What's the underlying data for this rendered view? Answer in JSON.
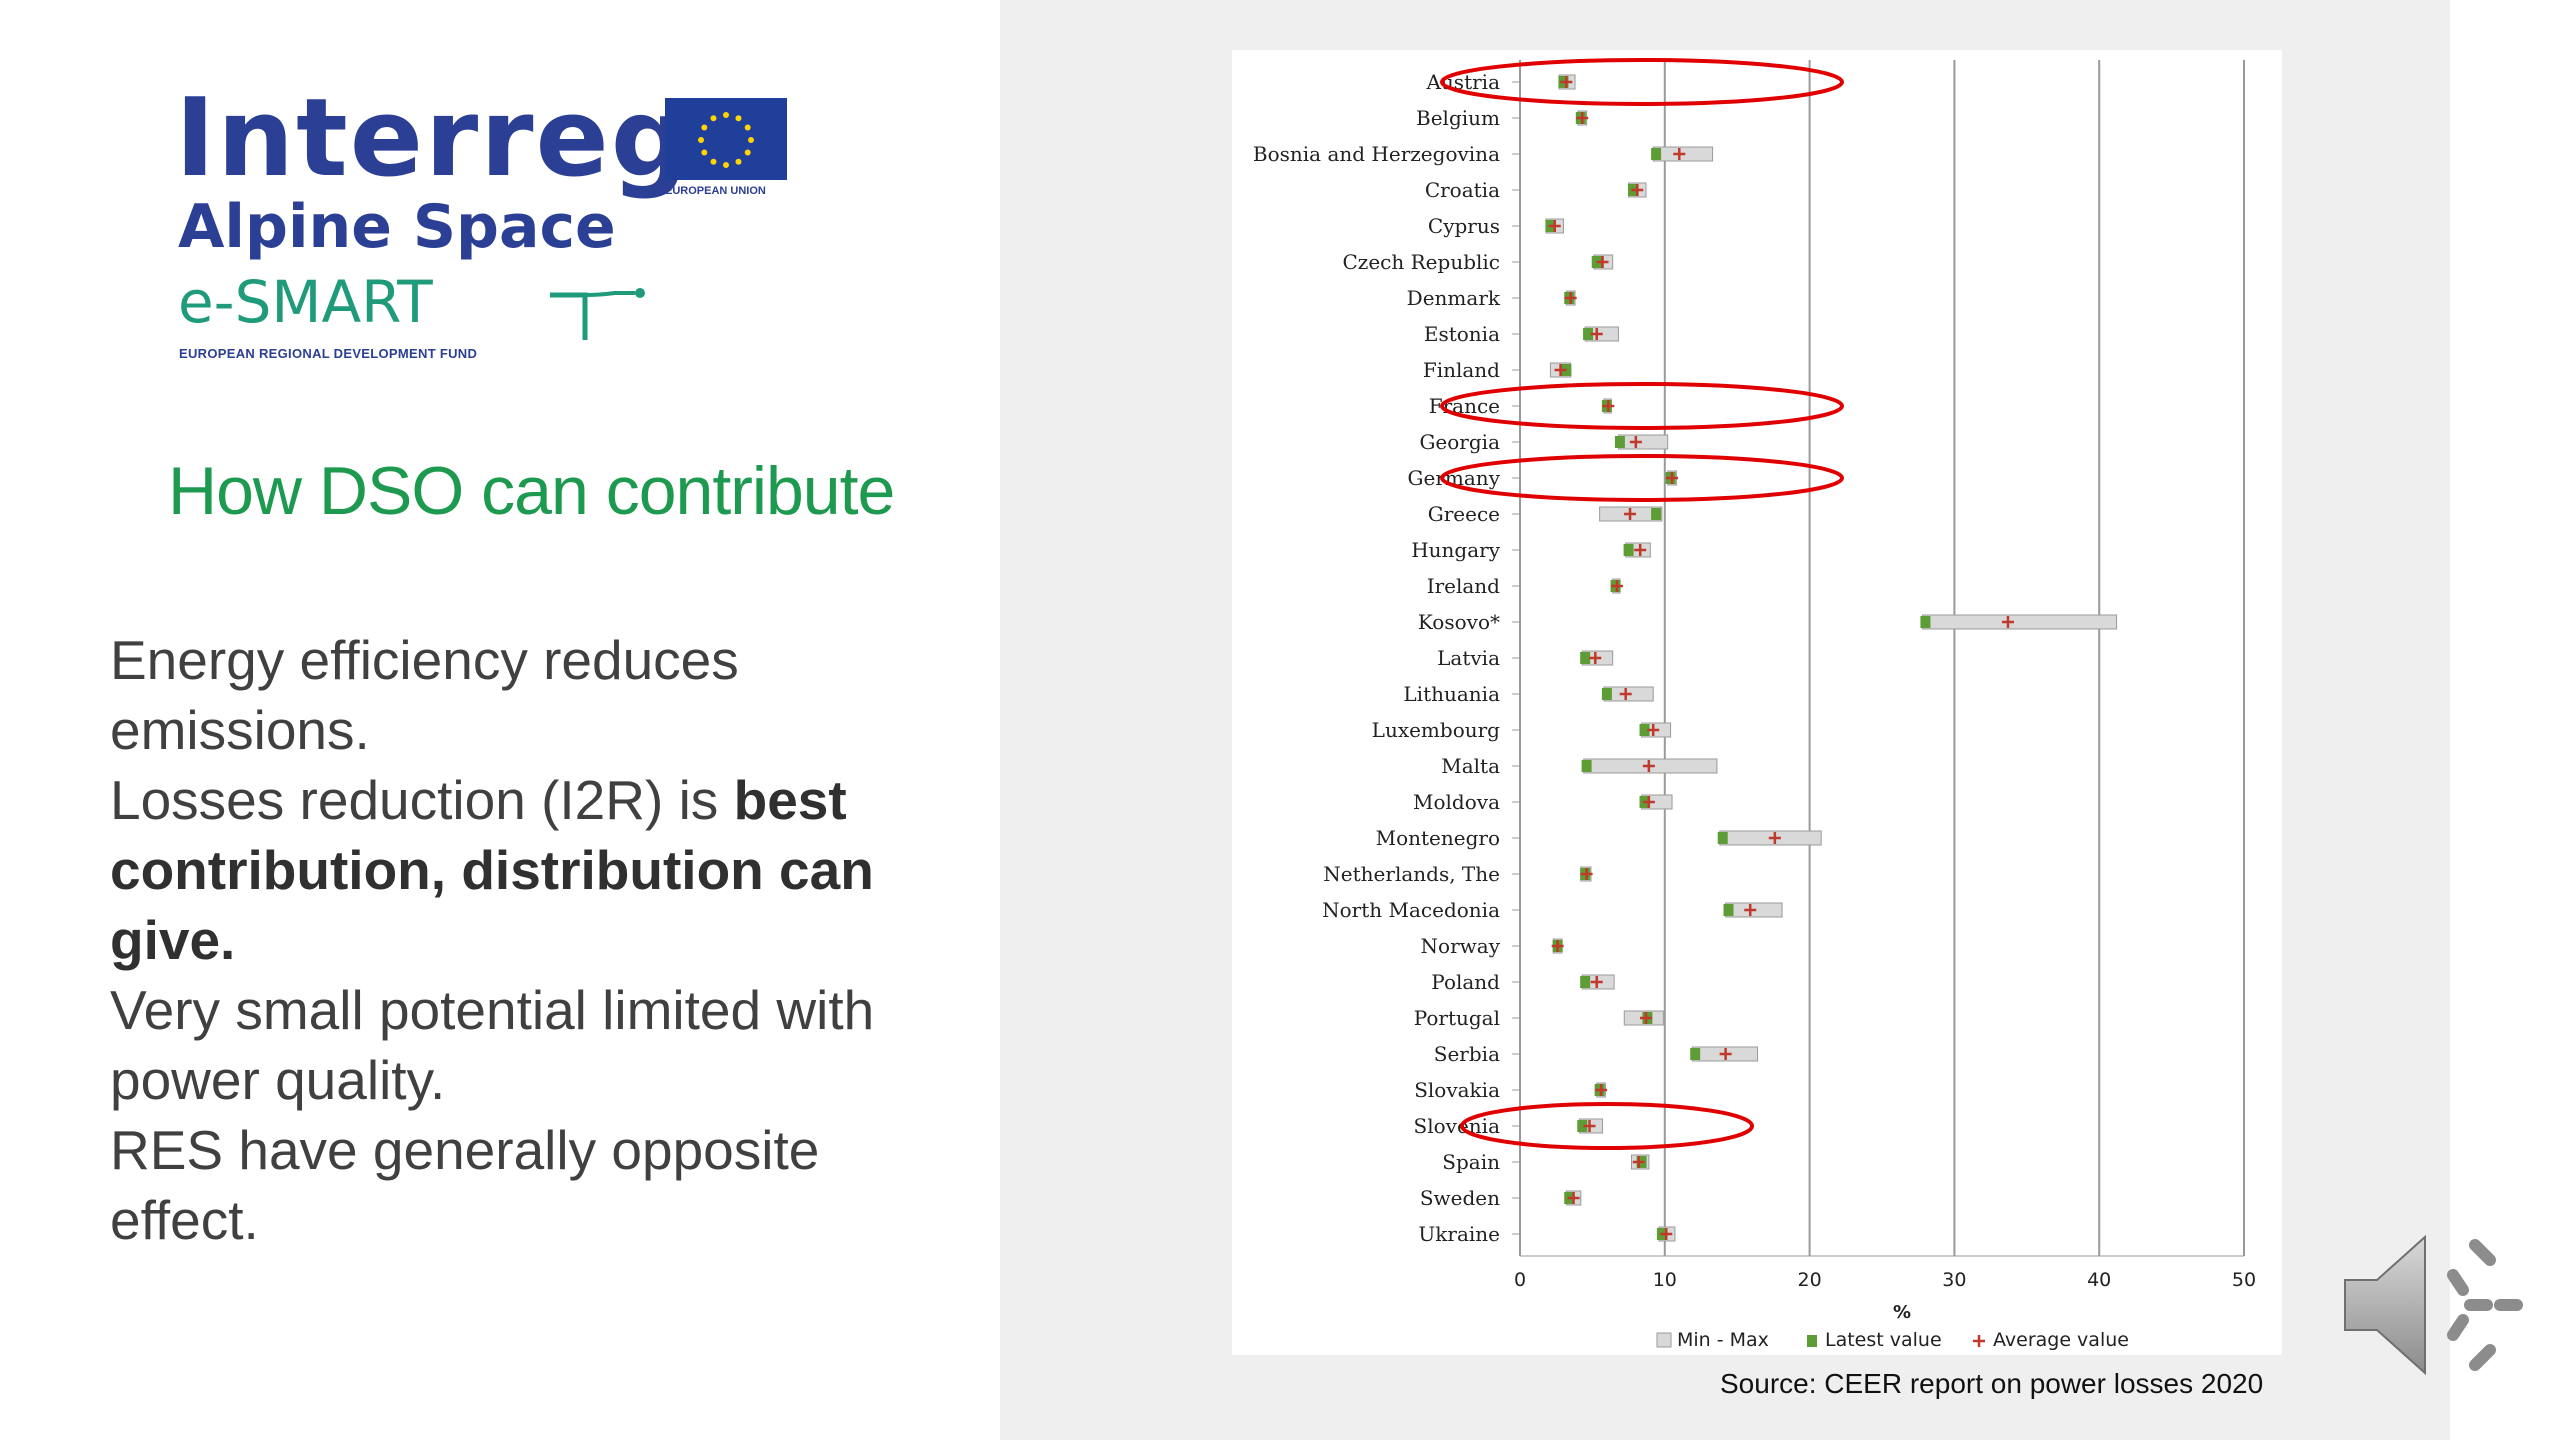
{
  "logo": {
    "brand": "Interreg",
    "program": "Alpine Space",
    "project": "e-SMART",
    "fund": "EUROPEAN REGIONAL DEVELOPMENT FUND",
    "eu_label": "EUROPEAN UNION"
  },
  "heading": "How DSO can contribute",
  "body": {
    "line1": "Energy efficiency reduces emissions.",
    "line2_pre": "Losses reduction (I2R) is ",
    "line2_bold": "best contribution, distribution can give.",
    "line3": "Very small potential limited with power quality.",
    "line4": "RES have generally opposite effect."
  },
  "source": "Source: CEER report on power losses 2020",
  "colors": {
    "heading": "#1e9a50",
    "brand_blue": "#2b3f94",
    "latest": "#5e9c36",
    "average": "#c0392b",
    "range_fill": "#d9d9d9",
    "highlight": "#e00000"
  },
  "icons": {
    "speaker": "speaker-volume-icon"
  },
  "chart_data": {
    "type": "range-dot",
    "xlabel": "%",
    "xlim": [
      0,
      50
    ],
    "xticks": [
      0,
      10,
      20,
      30,
      40,
      50
    ],
    "grid": "vertical",
    "legend": {
      "position": "bottom",
      "items": [
        "Min - Max",
        "Latest value",
        "Average value"
      ]
    },
    "highlighted": [
      "Austria",
      "France",
      "Germany",
      "Slovenia"
    ],
    "rows": [
      {
        "country": "Austria",
        "min": 2.7,
        "max": 3.8,
        "latest": 3.0,
        "avg": 3.2
      },
      {
        "country": "Belgium",
        "min": 4.0,
        "max": 4.6,
        "latest": 4.2,
        "avg": 4.3
      },
      {
        "country": "Bosnia and Herzegovina",
        "min": 9.2,
        "max": 13.3,
        "latest": 9.4,
        "avg": 11.0
      },
      {
        "country": "Croatia",
        "min": 7.5,
        "max": 8.7,
        "latest": 7.8,
        "avg": 8.1
      },
      {
        "country": "Cyprus",
        "min": 1.8,
        "max": 3.0,
        "latest": 2.1,
        "avg": 2.4
      },
      {
        "country": "Czech Republic",
        "min": 5.1,
        "max": 6.4,
        "latest": 5.3,
        "avg": 5.7
      },
      {
        "country": "Denmark",
        "min": 3.2,
        "max": 3.8,
        "latest": 3.4,
        "avg": 3.5
      },
      {
        "country": "Estonia",
        "min": 4.5,
        "max": 6.8,
        "latest": 4.7,
        "avg": 5.3
      },
      {
        "country": "Finland",
        "min": 2.1,
        "max": 3.5,
        "latest": 3.2,
        "avg": 2.8
      },
      {
        "country": "France",
        "min": 5.8,
        "max": 6.3,
        "latest": 6.0,
        "avg": 6.1
      },
      {
        "country": "Georgia",
        "min": 6.8,
        "max": 10.2,
        "latest": 6.9,
        "avg": 8.0
      },
      {
        "country": "Germany",
        "min": 10.2,
        "max": 10.8,
        "latest": 10.4,
        "avg": 10.5
      },
      {
        "country": "Greece",
        "min": 5.5,
        "max": 9.8,
        "latest": 9.4,
        "avg": 7.6
      },
      {
        "country": "Hungary",
        "min": 7.3,
        "max": 9.0,
        "latest": 7.5,
        "avg": 8.3
      },
      {
        "country": "Ireland",
        "min": 6.4,
        "max": 6.9,
        "latest": 6.6,
        "avg": 6.7
      },
      {
        "country": "Kosovo*",
        "min": 27.8,
        "max": 41.2,
        "latest": 28.0,
        "avg": 33.7
      },
      {
        "country": "Latvia",
        "min": 4.3,
        "max": 6.4,
        "latest": 4.5,
        "avg": 5.2
      },
      {
        "country": "Lithuania",
        "min": 5.8,
        "max": 9.2,
        "latest": 6.0,
        "avg": 7.3
      },
      {
        "country": "Luxembourg",
        "min": 8.4,
        "max": 10.4,
        "latest": 8.6,
        "avg": 9.2
      },
      {
        "country": "Malta",
        "min": 4.4,
        "max": 13.6,
        "latest": 4.6,
        "avg": 8.9
      },
      {
        "country": "Moldova",
        "min": 8.4,
        "max": 10.5,
        "latest": 8.6,
        "avg": 8.9
      },
      {
        "country": "Montenegro",
        "min": 13.8,
        "max": 20.8,
        "latest": 14.0,
        "avg": 17.6
      },
      {
        "country": "Netherlands, The",
        "min": 4.2,
        "max": 4.9,
        "latest": 4.5,
        "avg": 4.6
      },
      {
        "country": "North Macedonia",
        "min": 14.2,
        "max": 18.1,
        "latest": 14.4,
        "avg": 15.9
      },
      {
        "country": "Norway",
        "min": 2.3,
        "max": 2.9,
        "latest": 2.6,
        "avg": 2.6
      },
      {
        "country": "Poland",
        "min": 4.3,
        "max": 6.5,
        "latest": 4.5,
        "avg": 5.3
      },
      {
        "country": "Portugal",
        "min": 7.2,
        "max": 9.9,
        "latest": 8.8,
        "avg": 8.7
      },
      {
        "country": "Serbia",
        "min": 11.9,
        "max": 16.4,
        "latest": 12.1,
        "avg": 14.2
      },
      {
        "country": "Slovakia",
        "min": 5.3,
        "max": 5.9,
        "latest": 5.5,
        "avg": 5.6
      },
      {
        "country": "Slovenia",
        "min": 4.1,
        "max": 5.7,
        "latest": 4.3,
        "avg": 4.8
      },
      {
        "country": "Spain",
        "min": 7.7,
        "max": 8.9,
        "latest": 8.4,
        "avg": 8.2
      },
      {
        "country": "Sweden",
        "min": 3.2,
        "max": 4.2,
        "latest": 3.4,
        "avg": 3.7
      },
      {
        "country": "Ukraine",
        "min": 9.6,
        "max": 10.7,
        "latest": 9.8,
        "avg": 10.1
      }
    ]
  }
}
